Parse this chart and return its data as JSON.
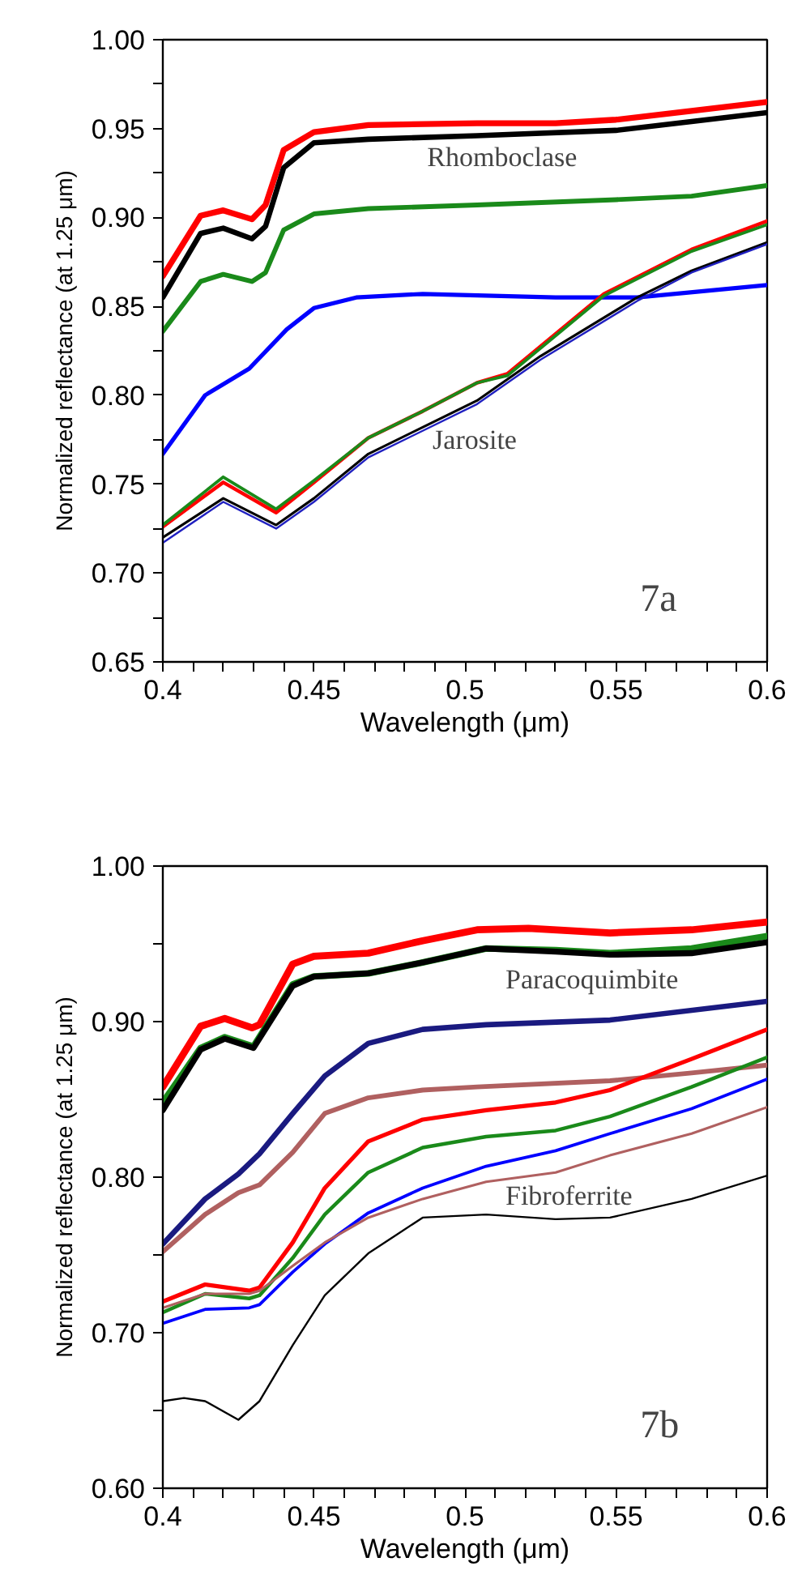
{
  "chart_data": [
    {
      "type": "line",
      "xlabel": "Wavelength (μm)",
      "ylabel": "Normalized reflectance (at 1.25 μm)",
      "xlim": [
        0.4,
        0.6
      ],
      "xticks": [
        0.4,
        {
          "value": 0.41,
          "label": null
        },
        {
          "value": 0.42,
          "label": null
        },
        {
          "value": 0.43,
          "label": null
        },
        {
          "value": 0.44,
          "label": null
        },
        0.45,
        {
          "value": 0.46,
          "label": null
        },
        {
          "value": 0.47,
          "label": null
        },
        {
          "value": 0.48,
          "label": null
        },
        {
          "value": 0.49,
          "label": null
        },
        0.5,
        {
          "value": 0.51,
          "label": null
        },
        {
          "value": 0.52,
          "label": null
        },
        {
          "value": 0.53,
          "label": null
        },
        {
          "value": 0.54,
          "label": null
        },
        0.55,
        {
          "value": 0.56,
          "label": null
        },
        {
          "value": 0.57,
          "label": null
        },
        {
          "value": 0.58,
          "label": null
        },
        {
          "value": 0.59,
          "label": null
        },
        0.6
      ],
      "ylim": [
        0.65,
        1.0
      ],
      "yticks": [
        0.65,
        {
          "value": 0.675,
          "label": null
        },
        {
          "value": 0.7,
          "label": "0.70"
        },
        {
          "value": 0.725,
          "label": null
        },
        0.75,
        {
          "value": 0.775,
          "label": null
        },
        {
          "value": 0.8,
          "label": "0.80"
        },
        {
          "value": 0.825,
          "label": null
        },
        0.85,
        {
          "value": 0.875,
          "label": null
        },
        {
          "value": 0.9,
          "label": "0.90"
        },
        {
          "value": 0.925,
          "label": null
        },
        0.95,
        {
          "value": 0.975,
          "label": null
        },
        {
          "value": 1.0,
          "label": "1.00"
        }
      ],
      "grid": false,
      "series": [
        {
          "color": "#ff0000",
          "x": [
            0.4,
            0.4125,
            0.42,
            0.4295,
            0.434,
            0.44,
            0.45,
            0.468,
            0.504,
            0.53,
            0.55,
            0.575,
            0.6
          ],
          "values": [
            0.867,
            0.901,
            0.904,
            0.899,
            0.907,
            0.938,
            0.948,
            0.952,
            0.953,
            0.953,
            0.955,
            0.96,
            0.965
          ]
        },
        {
          "color": "#000000",
          "x": [
            0.4,
            0.4125,
            0.42,
            0.4295,
            0.434,
            0.44,
            0.45,
            0.468,
            0.504,
            0.55,
            0.575,
            0.6
          ],
          "values": [
            0.855,
            0.891,
            0.894,
            0.888,
            0.895,
            0.928,
            0.942,
            0.944,
            0.946,
            0.949,
            0.954,
            0.959
          ]
        },
        {
          "color": "#1a8a1a",
          "x": [
            0.4,
            0.4125,
            0.42,
            0.4295,
            0.434,
            0.44,
            0.45,
            0.468,
            0.504,
            0.55,
            0.575,
            0.6
          ],
          "values": [
            0.836,
            0.864,
            0.868,
            0.864,
            0.869,
            0.893,
            0.902,
            0.905,
            0.907,
            0.91,
            0.912,
            0.918
          ]
        },
        {
          "color": "#0000ff",
          "x": [
            0.4,
            0.414,
            0.4286,
            0.441,
            0.45,
            0.464,
            0.486,
            0.53,
            0.557,
            0.6
          ],
          "values": [
            0.767,
            0.8,
            0.815,
            0.837,
            0.849,
            0.855,
            0.857,
            0.855,
            0.855,
            0.862
          ]
        },
        {
          "color": "#ff0000",
          "x": [
            0.4,
            0.42,
            0.4375,
            0.45,
            0.468,
            0.486,
            0.504,
            0.514,
            0.546,
            0.575,
            0.6
          ],
          "values": [
            0.726,
            0.751,
            0.734,
            0.751,
            0.776,
            0.791,
            0.807,
            0.812,
            0.857,
            0.882,
            0.898
          ]
        },
        {
          "color": "#1a8a1a",
          "x": [
            0.4,
            0.42,
            0.4375,
            0.45,
            0.468,
            0.486,
            0.504,
            0.514,
            0.546,
            0.575,
            0.6
          ],
          "values": [
            0.727,
            0.754,
            0.736,
            0.752,
            0.776,
            0.791,
            0.807,
            0.811,
            0.856,
            0.881,
            0.896
          ]
        },
        {
          "color": "#000000",
          "x": [
            0.4,
            0.42,
            0.4375,
            0.45,
            0.468,
            0.486,
            0.504,
            0.525,
            0.557,
            0.575,
            0.6
          ],
          "values": [
            0.72,
            0.742,
            0.727,
            0.742,
            0.767,
            0.782,
            0.797,
            0.822,
            0.855,
            0.87,
            0.886
          ]
        },
        {
          "color": "#2020c0",
          "x": [
            0.4,
            0.42,
            0.4375,
            0.45,
            0.468,
            0.486,
            0.504,
            0.525,
            0.557,
            0.575,
            0.6
          ],
          "values": [
            0.717,
            0.74,
            0.725,
            0.74,
            0.765,
            0.78,
            0.795,
            0.82,
            0.853,
            0.869,
            0.885
          ]
        }
      ],
      "annotations": [
        "Rhomboclase",
        "Jarosite",
        "7a"
      ]
    },
    {
      "type": "line",
      "xlabel": "Wavelength (μm)",
      "ylabel": "Normalized reflectance (at 1.25 μm)",
      "xlim": [
        0.4,
        0.6
      ],
      "xticks": [
        0.4,
        {
          "value": 0.41,
          "label": null
        },
        {
          "value": 0.42,
          "label": null
        },
        {
          "value": 0.43,
          "label": null
        },
        {
          "value": 0.44,
          "label": null
        },
        0.45,
        {
          "value": 0.46,
          "label": null
        },
        {
          "value": 0.47,
          "label": null
        },
        {
          "value": 0.48,
          "label": null
        },
        {
          "value": 0.49,
          "label": null
        },
        0.5,
        {
          "value": 0.51,
          "label": null
        },
        {
          "value": 0.52,
          "label": null
        },
        {
          "value": 0.53,
          "label": null
        },
        {
          "value": 0.54,
          "label": null
        },
        0.55,
        {
          "value": 0.56,
          "label": null
        },
        {
          "value": 0.57,
          "label": null
        },
        {
          "value": 0.58,
          "label": null
        },
        {
          "value": 0.59,
          "label": null
        },
        0.6
      ],
      "ylim": [
        0.6,
        1.0
      ],
      "yticks": [
        {
          "value": 0.6,
          "label": "0.60"
        },
        {
          "value": 0.65,
          "label": null
        },
        {
          "value": 0.7,
          "label": "0.70"
        },
        {
          "value": 0.75,
          "label": null
        },
        {
          "value": 0.8,
          "label": "0.80"
        },
        {
          "value": 0.85,
          "label": null
        },
        {
          "value": 0.9,
          "label": "0.90"
        },
        {
          "value": 0.95,
          "label": null
        },
        {
          "value": 1.0,
          "label": "1.00"
        }
      ],
      "grid": false,
      "series": [
        {
          "color": "#ff0000",
          "x": [
            0.4,
            0.4125,
            0.4205,
            0.4295,
            0.432,
            0.443,
            0.45,
            0.468,
            0.486,
            0.504,
            0.521,
            0.548,
            0.575,
            0.6
          ],
          "values": [
            0.858,
            0.897,
            0.902,
            0.896,
            0.898,
            0.937,
            0.942,
            0.944,
            0.952,
            0.959,
            0.96,
            0.957,
            0.959,
            0.964
          ]
        },
        {
          "color": "#1a8a1a",
          "x": [
            0.4,
            0.4125,
            0.4205,
            0.43,
            0.443,
            0.45,
            0.468,
            0.486,
            0.507,
            0.53,
            0.548,
            0.575,
            0.6
          ],
          "values": [
            0.848,
            0.883,
            0.89,
            0.884,
            0.924,
            0.929,
            0.931,
            0.938,
            0.947,
            0.946,
            0.944,
            0.947,
            0.955
          ]
        },
        {
          "color": "#000000",
          "x": [
            0.4,
            0.4125,
            0.4205,
            0.43,
            0.443,
            0.45,
            0.468,
            0.486,
            0.507,
            0.53,
            0.548,
            0.575,
            0.6
          ],
          "values": [
            0.843,
            0.882,
            0.889,
            0.883,
            0.923,
            0.929,
            0.931,
            0.938,
            0.947,
            0.945,
            0.943,
            0.944,
            0.951
          ]
        },
        {
          "color": "#1a1a80",
          "x": [
            0.4,
            0.414,
            0.425,
            0.432,
            0.443,
            0.4536,
            0.468,
            0.486,
            0.507,
            0.548,
            0.6
          ],
          "values": [
            0.757,
            0.786,
            0.802,
            0.815,
            0.841,
            0.865,
            0.886,
            0.895,
            0.898,
            0.901,
            0.913
          ]
        },
        {
          "color": "#b06060",
          "x": [
            0.4,
            0.414,
            0.425,
            0.432,
            0.443,
            0.4536,
            0.468,
            0.486,
            0.504,
            0.548,
            0.575,
            0.6
          ],
          "values": [
            0.752,
            0.776,
            0.79,
            0.795,
            0.816,
            0.841,
            0.851,
            0.856,
            0.858,
            0.862,
            0.867,
            0.872
          ]
        },
        {
          "color": "#ff0000",
          "x": [
            0.4,
            0.414,
            0.4286,
            0.432,
            0.443,
            0.4536,
            0.468,
            0.486,
            0.507,
            0.53,
            0.548,
            0.575,
            0.6
          ],
          "values": [
            0.72,
            0.731,
            0.727,
            0.729,
            0.758,
            0.793,
            0.823,
            0.837,
            0.843,
            0.848,
            0.856,
            0.876,
            0.895
          ]
        },
        {
          "color": "#1a8a1a",
          "x": [
            0.4,
            0.414,
            0.4286,
            0.432,
            0.443,
            0.4536,
            0.468,
            0.486,
            0.507,
            0.53,
            0.548,
            0.575,
            0.6
          ],
          "values": [
            0.713,
            0.725,
            0.722,
            0.724,
            0.748,
            0.776,
            0.803,
            0.819,
            0.826,
            0.83,
            0.839,
            0.858,
            0.877
          ]
        },
        {
          "color": "#0000ff",
          "x": [
            0.4,
            0.414,
            0.4286,
            0.432,
            0.443,
            0.4536,
            0.468,
            0.486,
            0.507,
            0.53,
            0.548,
            0.575,
            0.6
          ],
          "values": [
            0.706,
            0.715,
            0.716,
            0.718,
            0.739,
            0.757,
            0.777,
            0.793,
            0.807,
            0.817,
            0.828,
            0.844,
            0.863
          ]
        },
        {
          "color": "#b06060",
          "x": [
            0.4,
            0.414,
            0.4286,
            0.432,
            0.443,
            0.4536,
            0.468,
            0.486,
            0.507,
            0.53,
            0.548,
            0.575,
            0.6
          ],
          "values": [
            0.716,
            0.725,
            0.725,
            0.727,
            0.743,
            0.758,
            0.774,
            0.786,
            0.797,
            0.803,
            0.814,
            0.828,
            0.845
          ]
        },
        {
          "color": "#000000",
          "x": [
            0.4,
            0.407,
            0.414,
            0.425,
            0.432,
            0.443,
            0.4536,
            0.468,
            0.486,
            0.507,
            0.53,
            0.548,
            0.575,
            0.6
          ],
          "values": [
            0.656,
            0.658,
            0.656,
            0.644,
            0.656,
            0.692,
            0.724,
            0.751,
            0.774,
            0.776,
            0.773,
            0.774,
            0.786,
            0.801
          ]
        }
      ],
      "annotations": [
        "Paracoquimbite",
        "Fibroferrite",
        "7b"
      ]
    }
  ]
}
